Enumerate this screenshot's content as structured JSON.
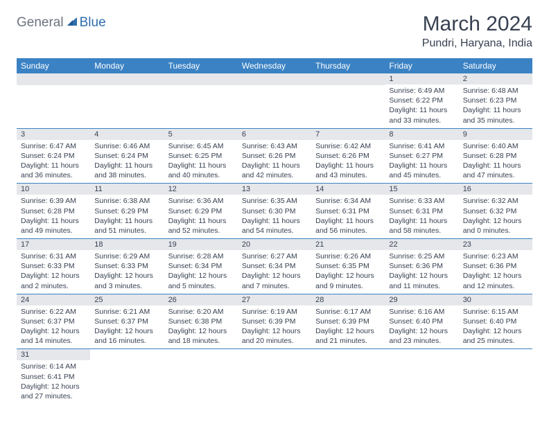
{
  "logo": {
    "gray": "General",
    "blue": "Blue"
  },
  "title": "March 2024",
  "location": "Pundri, Haryana, India",
  "colors": {
    "header_bg": "#3b82c4",
    "header_fg": "#ffffff",
    "daynum_bg": "#e5e7eb",
    "text": "#374151",
    "row_border": "#3b82c4",
    "logo_gray": "#6b7280",
    "logo_blue": "#2f6fad"
  },
  "weekdays": [
    "Sunday",
    "Monday",
    "Tuesday",
    "Wednesday",
    "Thursday",
    "Friday",
    "Saturday"
  ],
  "weeks": [
    [
      null,
      null,
      null,
      null,
      null,
      {
        "n": "1",
        "sunrise": "Sunrise: 6:49 AM",
        "sunset": "Sunset: 6:22 PM",
        "day1": "Daylight: 11 hours",
        "day2": "and 33 minutes."
      },
      {
        "n": "2",
        "sunrise": "Sunrise: 6:48 AM",
        "sunset": "Sunset: 6:23 PM",
        "day1": "Daylight: 11 hours",
        "day2": "and 35 minutes."
      }
    ],
    [
      {
        "n": "3",
        "sunrise": "Sunrise: 6:47 AM",
        "sunset": "Sunset: 6:24 PM",
        "day1": "Daylight: 11 hours",
        "day2": "and 36 minutes."
      },
      {
        "n": "4",
        "sunrise": "Sunrise: 6:46 AM",
        "sunset": "Sunset: 6:24 PM",
        "day1": "Daylight: 11 hours",
        "day2": "and 38 minutes."
      },
      {
        "n": "5",
        "sunrise": "Sunrise: 6:45 AM",
        "sunset": "Sunset: 6:25 PM",
        "day1": "Daylight: 11 hours",
        "day2": "and 40 minutes."
      },
      {
        "n": "6",
        "sunrise": "Sunrise: 6:43 AM",
        "sunset": "Sunset: 6:26 PM",
        "day1": "Daylight: 11 hours",
        "day2": "and 42 minutes."
      },
      {
        "n": "7",
        "sunrise": "Sunrise: 6:42 AM",
        "sunset": "Sunset: 6:26 PM",
        "day1": "Daylight: 11 hours",
        "day2": "and 43 minutes."
      },
      {
        "n": "8",
        "sunrise": "Sunrise: 6:41 AM",
        "sunset": "Sunset: 6:27 PM",
        "day1": "Daylight: 11 hours",
        "day2": "and 45 minutes."
      },
      {
        "n": "9",
        "sunrise": "Sunrise: 6:40 AM",
        "sunset": "Sunset: 6:28 PM",
        "day1": "Daylight: 11 hours",
        "day2": "and 47 minutes."
      }
    ],
    [
      {
        "n": "10",
        "sunrise": "Sunrise: 6:39 AM",
        "sunset": "Sunset: 6:28 PM",
        "day1": "Daylight: 11 hours",
        "day2": "and 49 minutes."
      },
      {
        "n": "11",
        "sunrise": "Sunrise: 6:38 AM",
        "sunset": "Sunset: 6:29 PM",
        "day1": "Daylight: 11 hours",
        "day2": "and 51 minutes."
      },
      {
        "n": "12",
        "sunrise": "Sunrise: 6:36 AM",
        "sunset": "Sunset: 6:29 PM",
        "day1": "Daylight: 11 hours",
        "day2": "and 52 minutes."
      },
      {
        "n": "13",
        "sunrise": "Sunrise: 6:35 AM",
        "sunset": "Sunset: 6:30 PM",
        "day1": "Daylight: 11 hours",
        "day2": "and 54 minutes."
      },
      {
        "n": "14",
        "sunrise": "Sunrise: 6:34 AM",
        "sunset": "Sunset: 6:31 PM",
        "day1": "Daylight: 11 hours",
        "day2": "and 56 minutes."
      },
      {
        "n": "15",
        "sunrise": "Sunrise: 6:33 AM",
        "sunset": "Sunset: 6:31 PM",
        "day1": "Daylight: 11 hours",
        "day2": "and 58 minutes."
      },
      {
        "n": "16",
        "sunrise": "Sunrise: 6:32 AM",
        "sunset": "Sunset: 6:32 PM",
        "day1": "Daylight: 12 hours",
        "day2": "and 0 minutes."
      }
    ],
    [
      {
        "n": "17",
        "sunrise": "Sunrise: 6:31 AM",
        "sunset": "Sunset: 6:33 PM",
        "day1": "Daylight: 12 hours",
        "day2": "and 2 minutes."
      },
      {
        "n": "18",
        "sunrise": "Sunrise: 6:29 AM",
        "sunset": "Sunset: 6:33 PM",
        "day1": "Daylight: 12 hours",
        "day2": "and 3 minutes."
      },
      {
        "n": "19",
        "sunrise": "Sunrise: 6:28 AM",
        "sunset": "Sunset: 6:34 PM",
        "day1": "Daylight: 12 hours",
        "day2": "and 5 minutes."
      },
      {
        "n": "20",
        "sunrise": "Sunrise: 6:27 AM",
        "sunset": "Sunset: 6:34 PM",
        "day1": "Daylight: 12 hours",
        "day2": "and 7 minutes."
      },
      {
        "n": "21",
        "sunrise": "Sunrise: 6:26 AM",
        "sunset": "Sunset: 6:35 PM",
        "day1": "Daylight: 12 hours",
        "day2": "and 9 minutes."
      },
      {
        "n": "22",
        "sunrise": "Sunrise: 6:25 AM",
        "sunset": "Sunset: 6:36 PM",
        "day1": "Daylight: 12 hours",
        "day2": "and 11 minutes."
      },
      {
        "n": "23",
        "sunrise": "Sunrise: 6:23 AM",
        "sunset": "Sunset: 6:36 PM",
        "day1": "Daylight: 12 hours",
        "day2": "and 12 minutes."
      }
    ],
    [
      {
        "n": "24",
        "sunrise": "Sunrise: 6:22 AM",
        "sunset": "Sunset: 6:37 PM",
        "day1": "Daylight: 12 hours",
        "day2": "and 14 minutes."
      },
      {
        "n": "25",
        "sunrise": "Sunrise: 6:21 AM",
        "sunset": "Sunset: 6:37 PM",
        "day1": "Daylight: 12 hours",
        "day2": "and 16 minutes."
      },
      {
        "n": "26",
        "sunrise": "Sunrise: 6:20 AM",
        "sunset": "Sunset: 6:38 PM",
        "day1": "Daylight: 12 hours",
        "day2": "and 18 minutes."
      },
      {
        "n": "27",
        "sunrise": "Sunrise: 6:19 AM",
        "sunset": "Sunset: 6:39 PM",
        "day1": "Daylight: 12 hours",
        "day2": "and 20 minutes."
      },
      {
        "n": "28",
        "sunrise": "Sunrise: 6:17 AM",
        "sunset": "Sunset: 6:39 PM",
        "day1": "Daylight: 12 hours",
        "day2": "and 21 minutes."
      },
      {
        "n": "29",
        "sunrise": "Sunrise: 6:16 AM",
        "sunset": "Sunset: 6:40 PM",
        "day1": "Daylight: 12 hours",
        "day2": "and 23 minutes."
      },
      {
        "n": "30",
        "sunrise": "Sunrise: 6:15 AM",
        "sunset": "Sunset: 6:40 PM",
        "day1": "Daylight: 12 hours",
        "day2": "and 25 minutes."
      }
    ],
    [
      {
        "n": "31",
        "sunrise": "Sunrise: 6:14 AM",
        "sunset": "Sunset: 6:41 PM",
        "day1": "Daylight: 12 hours",
        "day2": "and 27 minutes."
      },
      null,
      null,
      null,
      null,
      null,
      null
    ]
  ]
}
